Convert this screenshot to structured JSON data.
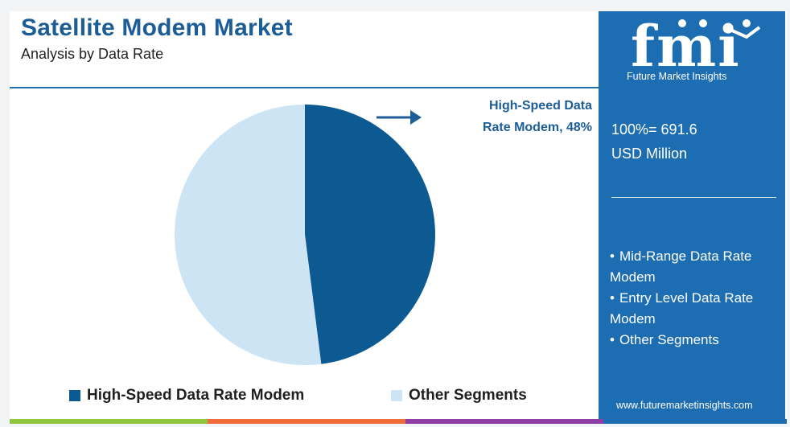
{
  "header": {
    "title": "Satellite Modem Market",
    "subtitle": "Analysis by Data Rate"
  },
  "callout": {
    "line1": "High-Speed Data",
    "line2": "Rate Modem, 48%"
  },
  "panel": {
    "brand": "fmi",
    "brand_sub": "Future Market Insights",
    "total_line1": "100%= 691.6",
    "total_line2": "USD Million",
    "segments": [
      "Mid-Range Data Rate Modem",
      "Entry Level Data Rate Modem",
      "Other Segments"
    ],
    "website": "www.futuremarketinsights.com"
  },
  "colors": {
    "primary": "#0d5a92",
    "secondary": "#cde4f4",
    "panel": "#1d6db3",
    "title": "#1d5d97"
  },
  "chart_data": {
    "type": "pie",
    "title": "Satellite Modem Market",
    "subtitle": "Analysis by Data Rate",
    "categories": [
      "High-Speed Data Rate Modem",
      "Other Segments"
    ],
    "values": [
      48,
      52
    ],
    "unit": "%",
    "legend": [
      "High-Speed Data Rate Modem",
      "Other Segments"
    ],
    "legend_position": "bottom",
    "colors": [
      "#0d5a92",
      "#cde4f4"
    ]
  }
}
